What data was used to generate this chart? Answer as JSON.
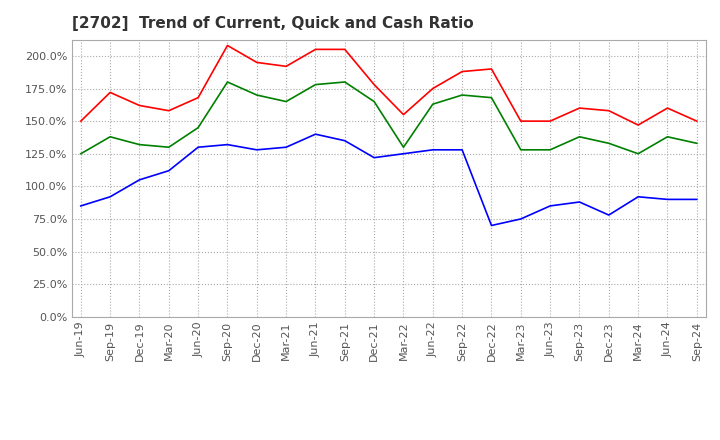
{
  "title": "[2702]  Trend of Current, Quick and Cash Ratio",
  "x_labels": [
    "Jun-19",
    "Sep-19",
    "Dec-19",
    "Mar-20",
    "Jun-20",
    "Sep-20",
    "Dec-20",
    "Mar-21",
    "Jun-21",
    "Sep-21",
    "Dec-21",
    "Mar-22",
    "Jun-22",
    "Sep-22",
    "Dec-22",
    "Mar-23",
    "Jun-23",
    "Sep-23",
    "Dec-23",
    "Mar-24",
    "Jun-24",
    "Sep-24"
  ],
  "current_ratio": [
    1.5,
    1.72,
    1.62,
    1.58,
    1.68,
    2.08,
    1.95,
    1.92,
    2.05,
    2.05,
    1.78,
    1.55,
    1.75,
    1.88,
    1.9,
    1.5,
    1.5,
    1.6,
    1.58,
    1.47,
    1.6,
    1.5
  ],
  "quick_ratio": [
    1.25,
    1.38,
    1.32,
    1.3,
    1.45,
    1.8,
    1.7,
    1.65,
    1.78,
    1.8,
    1.65,
    1.3,
    1.63,
    1.7,
    1.68,
    1.28,
    1.28,
    1.38,
    1.33,
    1.25,
    1.38,
    1.33
  ],
  "cash_ratio": [
    0.85,
    0.92,
    1.05,
    1.12,
    1.3,
    1.32,
    1.28,
    1.3,
    1.4,
    1.35,
    1.22,
    1.25,
    1.28,
    1.28,
    0.7,
    0.75,
    0.85,
    0.88,
    0.78,
    0.92,
    0.9,
    0.9
  ],
  "current_color": "#FF0000",
  "quick_color": "#008000",
  "cash_color": "#0000FF",
  "background_color": "#ffffff",
  "grid_color": "#aaaaaa",
  "ylim": [
    0.0,
    2.125
  ],
  "yticks": [
    0.0,
    0.25,
    0.5,
    0.75,
    1.0,
    1.25,
    1.5,
    1.75,
    2.0
  ],
  "title_fontsize": 11,
  "tick_fontsize": 8,
  "legend_fontsize": 9
}
